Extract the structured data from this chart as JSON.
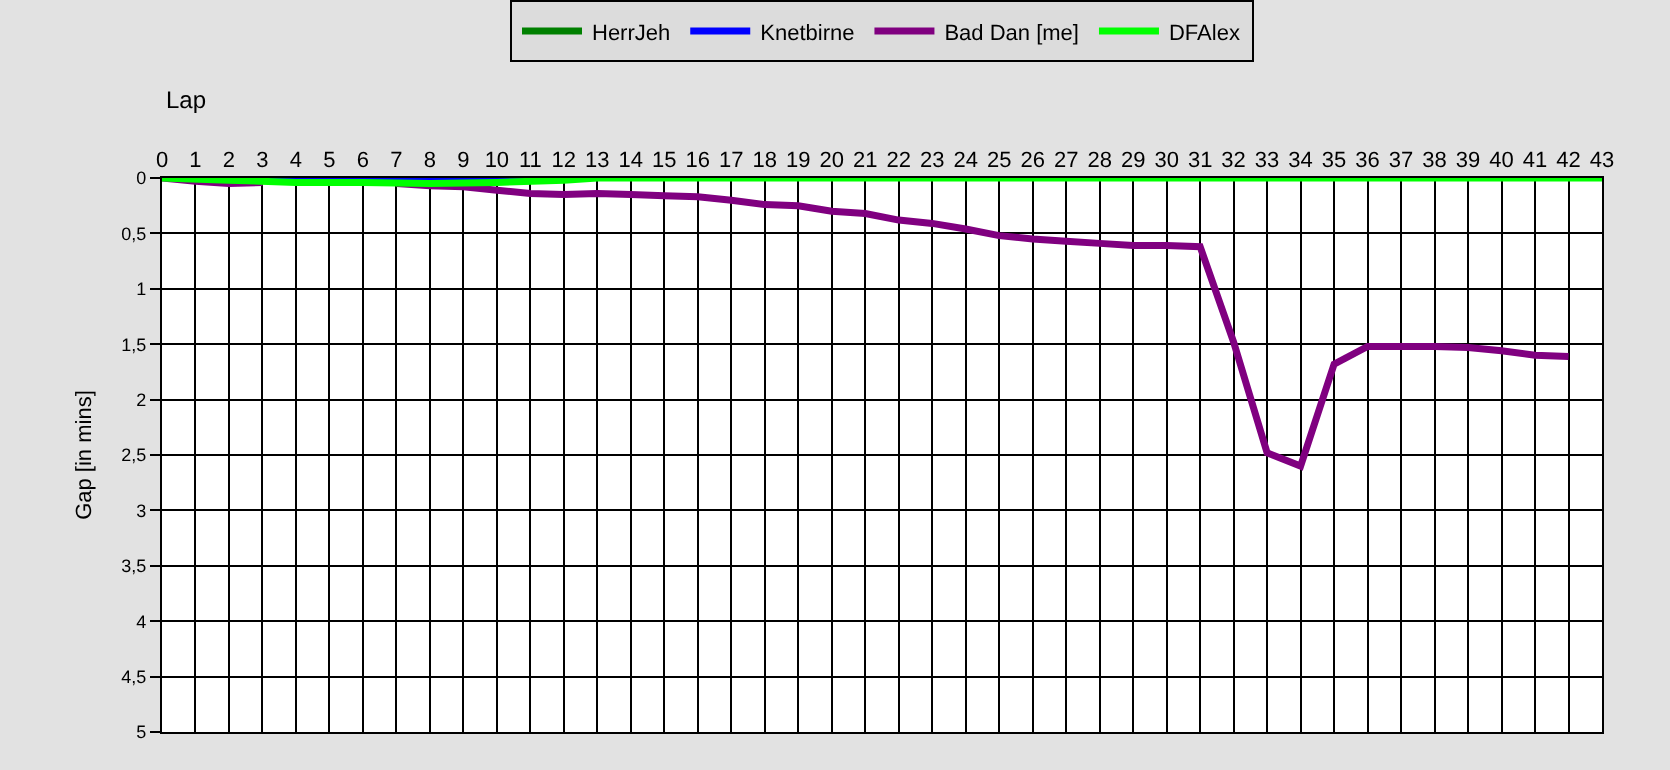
{
  "chart_data": {
    "type": "line",
    "xlabel": "Lap",
    "ylabel": "Gap [in mins]",
    "xlim": [
      0,
      43
    ],
    "xticks": [
      0,
      1,
      2,
      3,
      4,
      5,
      6,
      7,
      8,
      9,
      10,
      11,
      12,
      13,
      14,
      15,
      16,
      17,
      18,
      19,
      20,
      21,
      22,
      23,
      24,
      25,
      26,
      27,
      28,
      29,
      30,
      31,
      32,
      33,
      34,
      35,
      36,
      37,
      38,
      39,
      40,
      41,
      42,
      43
    ],
    "ylim": [
      5,
      0
    ],
    "yticks": [
      0,
      {
        "value": 0.5,
        "label": "0,5"
      },
      1,
      {
        "value": 1.5,
        "label": "1,5"
      },
      2,
      {
        "value": 2.5,
        "label": "2,5"
      },
      3,
      {
        "value": 3.5,
        "label": "3,5"
      },
      4,
      {
        "value": 4.5,
        "label": "4,5"
      },
      5
    ],
    "grid": true,
    "legend": "top",
    "marker": "none",
    "line_style": "solid",
    "series": [
      {
        "name": "HerrJeh",
        "color": "#008000"
      },
      {
        "name": "Knetbirne",
        "color": "#0000ff",
        "x": [
          3,
          4,
          5,
          6,
          7,
          8,
          9,
          10,
          11
        ],
        "values": [
          0,
          0,
          0,
          0,
          0,
          0,
          0,
          0,
          0
        ]
      },
      {
        "name": "Bad Dan [me]",
        "color": "#800080",
        "x": [
          0,
          1,
          2,
          3,
          4,
          5,
          6,
          7,
          8,
          9,
          10,
          11,
          12,
          13,
          14,
          15,
          16,
          17,
          18,
          19,
          20,
          21,
          22,
          23,
          24,
          25,
          26,
          27,
          28,
          29,
          30,
          31,
          32,
          33,
          34,
          35,
          36,
          37,
          38,
          39,
          40,
          41,
          42
        ],
        "values": [
          0,
          0.03,
          0.05,
          0.04,
          null,
          null,
          null,
          0.05,
          0.07,
          0.08,
          0.11,
          0.14,
          0.15,
          0.14,
          0.15,
          0.16,
          0.17,
          0.2,
          0.24,
          0.25,
          0.3,
          0.32,
          0.38,
          0.41,
          0.46,
          0.52,
          0.55,
          0.57,
          0.59,
          0.61,
          0.61,
          0.62,
          1.48,
          2.48,
          2.6,
          1.68,
          1.52,
          1.52,
          1.52,
          1.53,
          1.56,
          1.6,
          1.61
        ]
      },
      {
        "name": "DFAlex",
        "color": "#00ff00",
        "x": [
          0,
          2,
          4,
          6,
          8,
          10,
          12,
          13,
          43
        ],
        "values": [
          0,
          0.02,
          0.04,
          0.04,
          0.05,
          0.04,
          0.02,
          0,
          0
        ]
      }
    ]
  }
}
